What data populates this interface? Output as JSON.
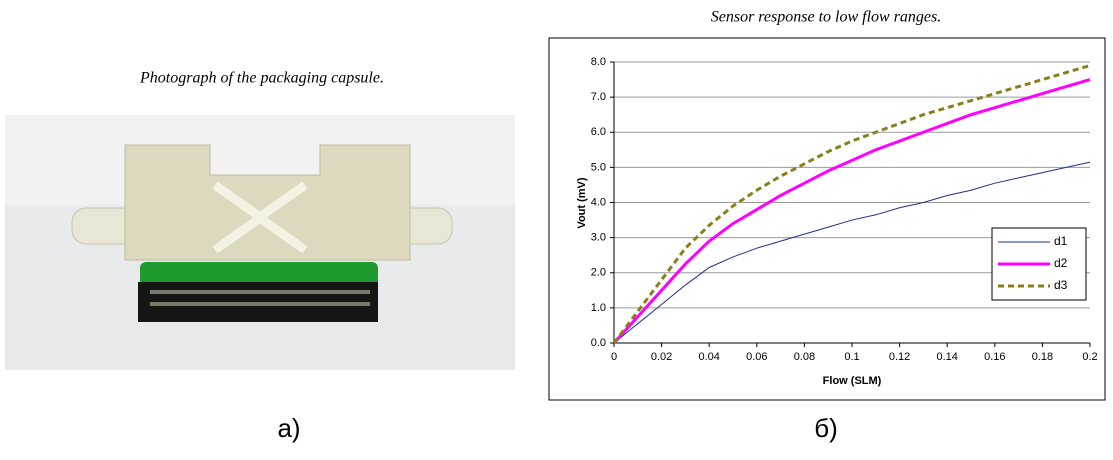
{
  "photo_caption": "Photograph of the packaging capsule.",
  "panel_labels": [
    "a)",
    "б)"
  ],
  "chart_data": {
    "type": "line",
    "title": "Sensor response to low flow ranges.",
    "xlabel": "Flow (SLM)",
    "ylabel": "Vout (mV)",
    "x": [
      0,
      0.01,
      0.02,
      0.03,
      0.04,
      0.05,
      0.06,
      0.07,
      0.08,
      0.09,
      0.1,
      0.11,
      0.12,
      0.13,
      0.14,
      0.15,
      0.16,
      0.17,
      0.18,
      0.19,
      0.2
    ],
    "series": [
      {
        "name": "d1",
        "color": "#1f2f8f",
        "values": [
          0,
          0.55,
          1.1,
          1.65,
          2.15,
          2.45,
          2.7,
          2.9,
          3.1,
          3.3,
          3.5,
          3.65,
          3.85,
          4.0,
          4.2,
          4.35,
          4.55,
          4.7,
          4.85,
          5.0,
          5.15
        ]
      },
      {
        "name": "d2",
        "color": "#ff00ff",
        "values": [
          0,
          0.75,
          1.5,
          2.25,
          2.9,
          3.4,
          3.8,
          4.2,
          4.55,
          4.9,
          5.2,
          5.5,
          5.75,
          6.0,
          6.25,
          6.5,
          6.7,
          6.9,
          7.1,
          7.3,
          7.5
        ]
      },
      {
        "name": "d3",
        "color": "#8b7d1a",
        "dash": true,
        "values": [
          0,
          0.9,
          1.8,
          2.7,
          3.35,
          3.9,
          4.35,
          4.75,
          5.1,
          5.45,
          5.75,
          6.0,
          6.25,
          6.5,
          6.7,
          6.9,
          7.1,
          7.3,
          7.5,
          7.7,
          7.9
        ]
      }
    ],
    "xlim": [
      0,
      0.2
    ],
    "ylim": [
      0,
      8
    ],
    "xticks": [
      0,
      0.02,
      0.04,
      0.06,
      0.08,
      0.1,
      0.12,
      0.14,
      0.16,
      0.18,
      0.2
    ],
    "yticks": [
      {
        "value": 0,
        "label": "0.0"
      },
      {
        "value": 1,
        "label": "1.0"
      },
      {
        "value": 2,
        "label": "2.0"
      },
      {
        "value": 3,
        "label": "3.0"
      },
      {
        "value": 4,
        "label": "4.0"
      },
      {
        "value": 5,
        "label": "5.0"
      },
      {
        "value": 6,
        "label": "6.0"
      },
      {
        "value": 7,
        "label": "7.0"
      },
      {
        "value": 8,
        "label": "8.0"
      }
    ],
    "grid": true,
    "legend": "right"
  }
}
